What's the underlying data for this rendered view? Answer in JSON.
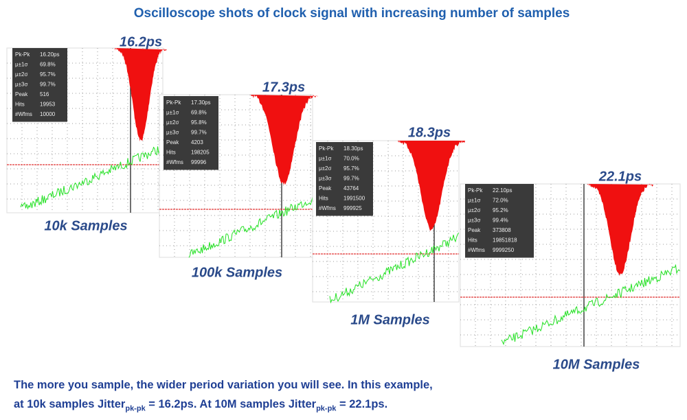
{
  "title": "Oscilloscope shots of clock signal with increasing number of samples",
  "panels": [
    {
      "peak_label": "16.2ps",
      "samples_label": "10k Samples",
      "stats": [
        [
          "Pk-Pk",
          "16.20ps"
        ],
        [
          "μ±1σ",
          "69.8%"
        ],
        [
          "μ±2σ",
          "95.7%"
        ],
        [
          "μ±3σ",
          "99.7%"
        ],
        [
          "Peak",
          "516"
        ],
        [
          "Hits",
          "19953"
        ],
        [
          "#Wfms",
          "10000"
        ]
      ]
    },
    {
      "peak_label": "17.3ps",
      "samples_label": "100k Samples",
      "stats": [
        [
          "Pk-Pk",
          "17.30ps"
        ],
        [
          "μ±1σ",
          "69.8%"
        ],
        [
          "μ±2σ",
          "95.8%"
        ],
        [
          "μ±3σ",
          "99.7%"
        ],
        [
          "Peak",
          "4203"
        ],
        [
          "Hits",
          "198205"
        ],
        [
          "#Wfms",
          "99996"
        ]
      ]
    },
    {
      "peak_label": "18.3ps",
      "samples_label": "1M Samples",
      "stats": [
        [
          "Pk-Pk",
          "18.30ps"
        ],
        [
          "μ±1σ",
          "70.0%"
        ],
        [
          "μ±2σ",
          "95.7%"
        ],
        [
          "μ±3σ",
          "99.7%"
        ],
        [
          "Peak",
          "43764"
        ],
        [
          "Hits",
          "1991500"
        ],
        [
          "#Wfms",
          "999925"
        ]
      ]
    },
    {
      "peak_label": "22.1ps",
      "samples_label": "10M Samples",
      "stats": [
        [
          "Pk-Pk",
          "22.10ps"
        ],
        [
          "μ±1σ",
          "72.0%"
        ],
        [
          "μ±2σ",
          "95.2%"
        ],
        [
          "μ±3σ",
          "99.4%"
        ],
        [
          "Peak",
          "373808"
        ],
        [
          "Hits",
          "19851818"
        ],
        [
          "#Wfms",
          "9999250"
        ]
      ]
    }
  ],
  "caption": {
    "line1": "The more you sample, the wider period variation you will see. In this example,",
    "line2": [
      "at 10k samples Jitter",
      "pk-pk",
      " = 16.2ps. At 10M samples Jitter",
      "pk-pk",
      " = 22.1ps."
    ]
  }
}
